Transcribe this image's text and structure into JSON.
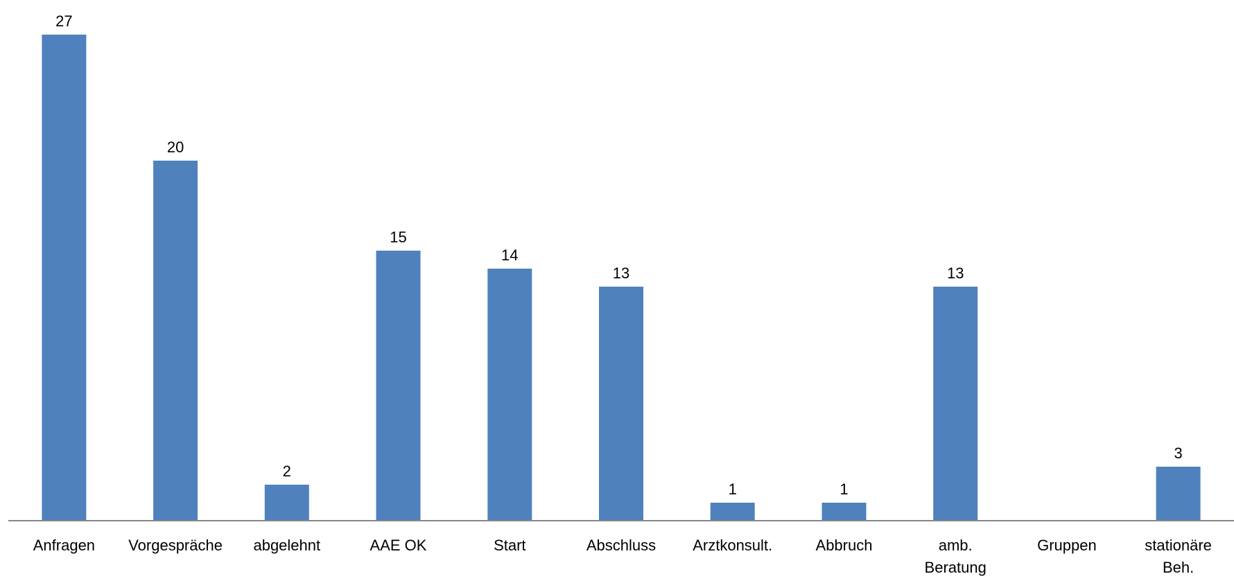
{
  "chart_data": {
    "type": "bar",
    "title": "",
    "xlabel": "",
    "ylabel": "",
    "categories": [
      "Anfragen",
      "Vorgespräche",
      "abgelehnt",
      "AAE OK",
      "Start",
      "Abschluss",
      "Arztkonsult.",
      "Abbruch",
      "amb. Beratung",
      "Gruppen",
      "stationäre Beh."
    ],
    "category_lines": [
      [
        "Anfragen"
      ],
      [
        "Vorgespräche"
      ],
      [
        "abgelehnt"
      ],
      [
        "AAE OK"
      ],
      [
        "Start"
      ],
      [
        "Abschluss"
      ],
      [
        "Arztkonsult."
      ],
      [
        "Abbruch"
      ],
      [
        "amb.",
        "Beratung"
      ],
      [
        "Gruppen"
      ],
      [
        "stationäre",
        "Beh."
      ]
    ],
    "series": [
      {
        "values": [
          27,
          20,
          2,
          15,
          14,
          13,
          1,
          1,
          13,
          null,
          3
        ],
        "color": "#4F81BD"
      }
    ],
    "ylim": [
      0,
      27
    ],
    "data_labels": true,
    "grid": false,
    "legend": "none",
    "axis_color": "#868686"
  }
}
